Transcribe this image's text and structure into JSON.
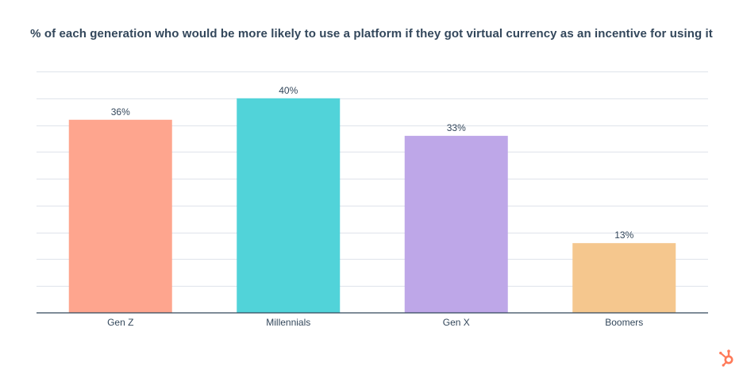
{
  "chart_data": {
    "type": "bar",
    "title": "% of each generation who would be more likely to use a platform if they got virtual currency as an incentive for using it",
    "categories": [
      "Gen Z",
      "Millennials",
      "Gen X",
      "Boomers"
    ],
    "values": [
      36,
      40,
      33,
      13
    ],
    "value_labels": [
      "36%",
      "40%",
      "33%",
      "13%"
    ],
    "colors": [
      "#fea58e",
      "#51d3d9",
      "#bea7e8",
      "#f5c78e"
    ],
    "xlabel": "",
    "ylabel": "",
    "ylim": [
      0,
      45
    ],
    "grid": true,
    "gridline_step": 5,
    "legend": "none"
  },
  "branding": {
    "logo_icon": "hubspot-sprocket-icon",
    "logo_color": "#ff7a59"
  }
}
